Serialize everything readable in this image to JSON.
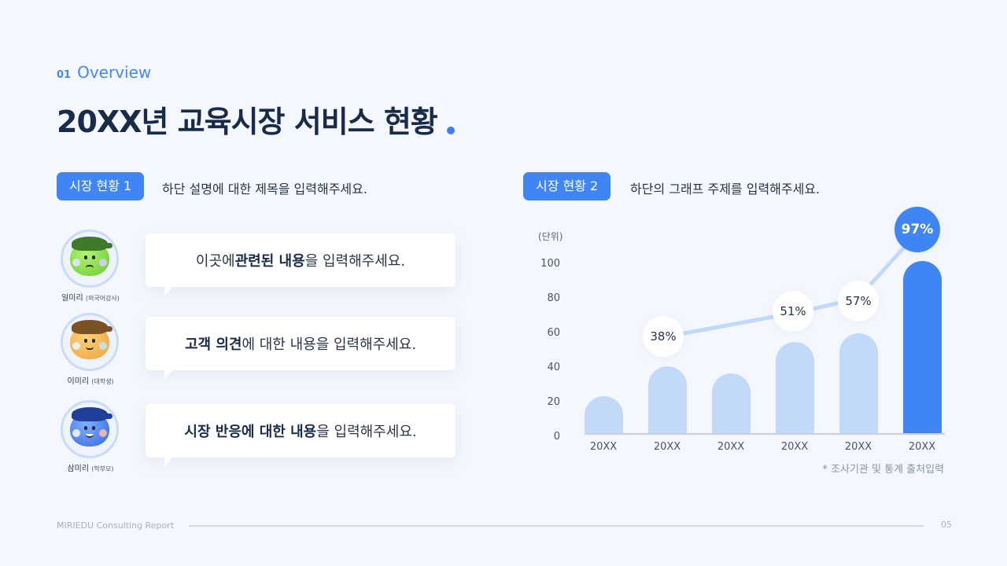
{
  "header": {
    "section_number": "01",
    "section_label": "Overview",
    "title": "20XX년 교육시장 서비스 현황",
    "accent_color": "#3f85f5"
  },
  "left_panel": {
    "badge": "시장 현황 1",
    "description": "하단 설명에 대한 제목을 입력해주세요.",
    "personas": [
      {
        "name": "일미리",
        "role": "(외국어강사)",
        "avatar_icon": "green-character-icon",
        "message_parts": [
          {
            "text": "이곳에 ",
            "bold": false
          },
          {
            "text": "관련된 내용",
            "bold": true
          },
          {
            "text": "을 입력해주세요.",
            "bold": false
          }
        ]
      },
      {
        "name": "이미리",
        "role": "(대학생)",
        "avatar_icon": "orange-character-icon",
        "message_parts": [
          {
            "text": "고객 의견",
            "bold": true
          },
          {
            "text": "에 대한 내용을 입력해주세요.",
            "bold": false
          }
        ]
      },
      {
        "name": "삼미리",
        "role": "(학부모)",
        "avatar_icon": "blue-character-icon",
        "message_parts": [
          {
            "text": "시장 반응에 대한 내용",
            "bold": true
          },
          {
            "text": "을 입력해주세요.",
            "bold": false
          }
        ]
      }
    ]
  },
  "right_panel": {
    "badge": "시장 현황 2",
    "description": "하단의 그래프 주제를 입력해주세요.",
    "source_note": "* 조사기관 및 통계 출처입력"
  },
  "chart_data": {
    "type": "bar",
    "title": "",
    "unit_label": "(단위)",
    "xlabel": "",
    "ylabel": "",
    "ylim": [
      0,
      100
    ],
    "yticks": [
      0,
      20,
      40,
      60,
      80,
      100
    ],
    "grid": false,
    "categories": [
      "20XX",
      "20XX",
      "20XX",
      "20XX",
      "20XX",
      "20XX"
    ],
    "series": [
      {
        "name": "bar",
        "values": [
          22,
          39,
          35,
          53,
          58,
          100
        ],
        "colors": [
          "#c2d9fa",
          "#c2d9fa",
          "#c2d9fa",
          "#c2d9fa",
          "#c2d9fa",
          "#3f85f5"
        ]
      },
      {
        "name": "percentage-line",
        "type": "line",
        "indices": [
          1,
          3,
          4,
          5
        ],
        "values": [
          38,
          51,
          57,
          97
        ],
        "labels": [
          "38%",
          "51%",
          "57%",
          "97%"
        ],
        "color": "#c2d9fa"
      }
    ],
    "highlight_index": 5
  },
  "footer": {
    "brand": "MIRIEDU Consulting Report",
    "page": "05"
  }
}
